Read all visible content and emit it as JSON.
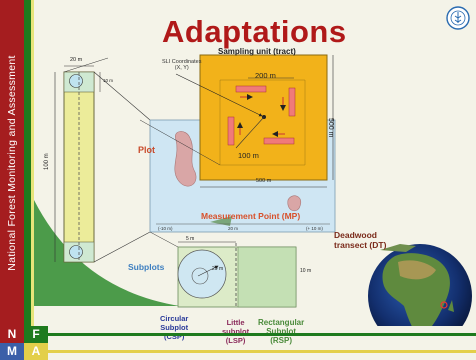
{
  "sidebar": {
    "text": "National Forest Monitoring and Assessment",
    "nf_letters": [
      "N",
      "F"
    ],
    "ma_letters": [
      "M",
      "A"
    ]
  },
  "header": {
    "title": "Adaptations"
  },
  "colors": {
    "band_red": "#a51d1f",
    "band_green": "#1e7a1e",
    "band_blue": "#3b5fa8",
    "band_yellow": "#e3cf4a",
    "tract": "#f2b21a",
    "title_red": "#b01919"
  },
  "diagram": {
    "tract_label": "Sampling unit (tract)",
    "sli_label": "SLI Coordinates\n(X, Y)",
    "tract_side": "500 m",
    "tract_inner_side": "200 m",
    "tract_offset": "100 m",
    "tract_bottom": "500 m",
    "plot_label": "Plot",
    "plot_width": "20 m",
    "plot_short": "10 m",
    "plot_length": "100 m",
    "measurement_point": "Measurement Point (MP)",
    "mp_left": "(-10 m)",
    "mp_mid": "20 m",
    "mp_right": "(+ 10 m)",
    "deadwood": "Deadwood\ntransect (DT)",
    "subplots_label": "Subplots",
    "sub_top": "5 m",
    "sub_right": "10 m",
    "sub_side": "20 m",
    "circular": "Circular\nSubplot\n(CSP)",
    "little": "Little\nsubplot\n(LSP)",
    "rectangular": "Rectangular\nSubplot\n(RSP)"
  }
}
